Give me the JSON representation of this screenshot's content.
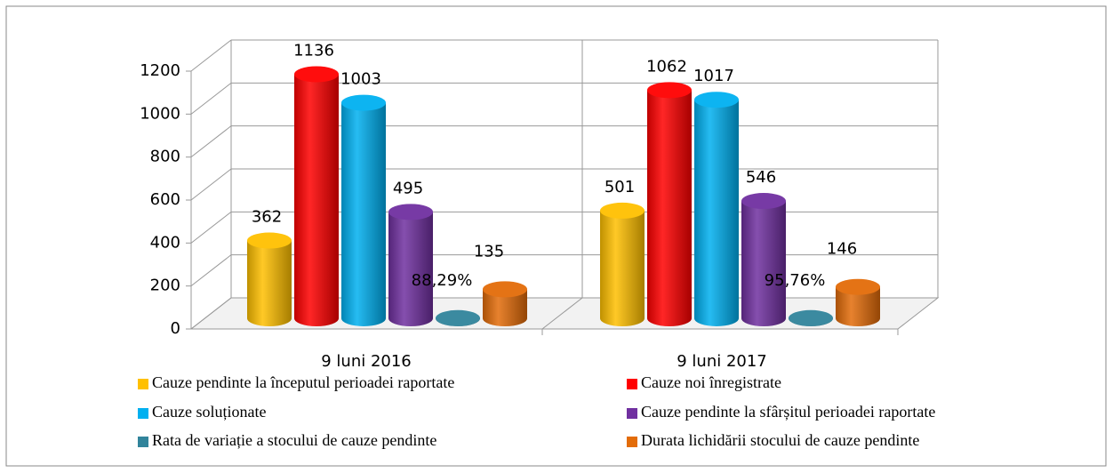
{
  "chart_data": {
    "type": "bar3d",
    "categories": [
      "9 luni 2016",
      "9 luni 2017"
    ],
    "series": [
      {
        "name": "Cauze pendinte la începutul perioadei raportate",
        "color": "#ffc000",
        "values": [
          362,
          501
        ]
      },
      {
        "name": "Cauze noi înregistrate",
        "color": "#ff0000",
        "values": [
          1136,
          1062
        ]
      },
      {
        "name": "Cauze soluționate",
        "color": "#00b0f0",
        "values": [
          1003,
          1017
        ]
      },
      {
        "name": "Cauze pendinte la sfârșitul perioadei raportate",
        "color": "#7030a0",
        "values": [
          495,
          546
        ]
      },
      {
        "name": "Rata de variație a stocului de cauze pendinte",
        "color": "#31849b",
        "values": [
          0.8829,
          0.9576
        ],
        "value_labels": [
          "88,29%",
          "95,76%"
        ]
      },
      {
        "name": "Durata lichidării stocului de cauze pendinte",
        "color": "#e36c09",
        "values": [
          135,
          146
        ]
      }
    ],
    "ylim": [
      0,
      1200
    ],
    "yticks": [
      0,
      200,
      400,
      600,
      800,
      1000,
      1200
    ],
    "grid": true
  }
}
